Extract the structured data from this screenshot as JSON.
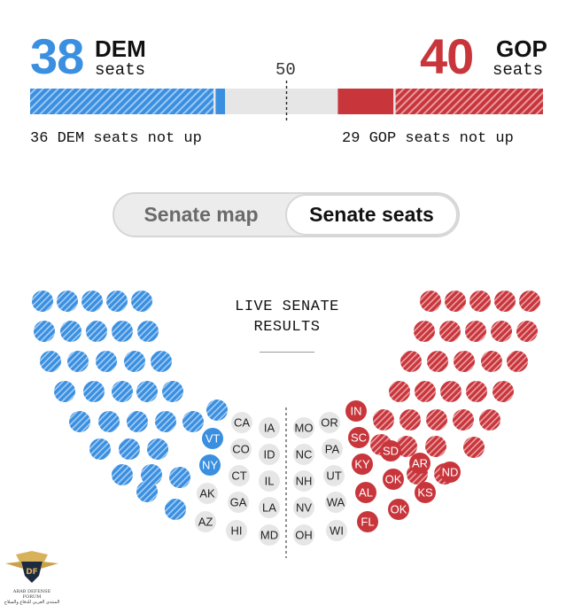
{
  "header": {
    "dem_count": "38",
    "dem_label": "DEM",
    "dem_seats_word": "seats",
    "gop_count": "40",
    "gop_label": "GOP",
    "gop_seats_word": "seats",
    "majority_label": "50",
    "dem_not_up": "36 DEM seats not up",
    "gop_not_up": "29 GOP seats not up"
  },
  "colors": {
    "dem": "#3a8fe0",
    "gop": "#c8363c",
    "uncalled": "#e6e6e6",
    "text": "#111111"
  },
  "toggle": {
    "map_label": "Senate map",
    "seats_label": "Senate seats",
    "selected": "Senate seats"
  },
  "center_title": {
    "line1": "LIVE SENATE",
    "line2": "RESULTS"
  },
  "watermark": {
    "line1": "ARAB DEFENSE FORUM",
    "line2": "المنتدى العربي للدفاع والسلاح"
  },
  "chart_data": {
    "type": "bar",
    "title": "",
    "total_seats": 100,
    "majority": 50,
    "series": [
      {
        "name": "DEM",
        "values": [
          38
        ]
      },
      {
        "name": "GOP",
        "values": [
          40
        ]
      }
    ],
    "dem": {
      "total": 38,
      "not_up": 36,
      "won": 2
    },
    "gop": {
      "total": 40,
      "not_up": 29,
      "won": 11
    },
    "uncalled": 22,
    "dem_races_won": [
      "VT",
      "NY"
    ],
    "gop_races_won": [
      "IN",
      "SC",
      "SD",
      "KY",
      "AR",
      "ND",
      "AL",
      "OK",
      "KS",
      "OK",
      "FL"
    ],
    "uncalled_races": [
      "CA",
      "IA",
      "MO",
      "OR",
      "CO",
      "ID",
      "NC",
      "PA",
      "CT",
      "IL",
      "NH",
      "UT",
      "AK",
      "GA",
      "LA",
      "NV",
      "WA",
      "AZ",
      "HI",
      "MD",
      "OH",
      "WI"
    ]
  }
}
